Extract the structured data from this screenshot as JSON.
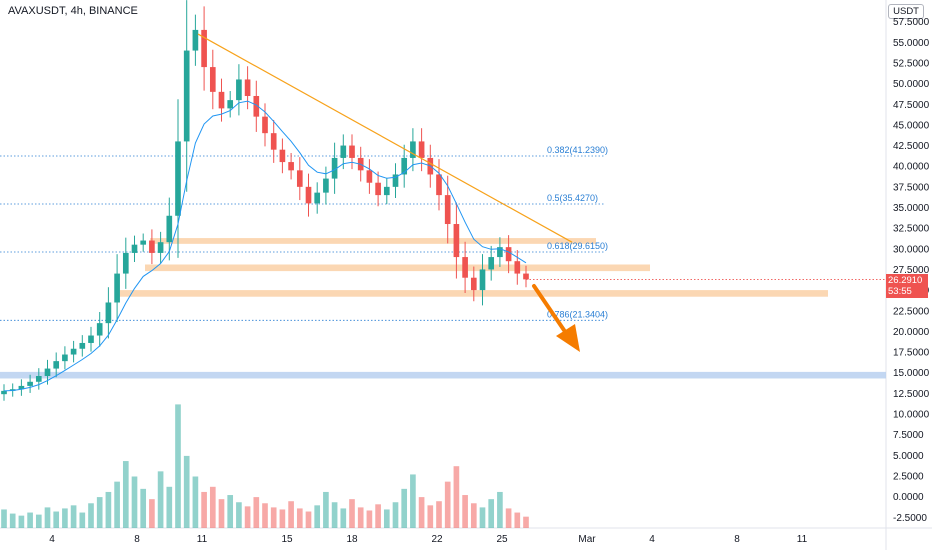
{
  "title": {
    "symbol": "AVAXUSDT",
    "interval": "4h",
    "exchange": "BINANCE"
  },
  "unit_badge": "USDT",
  "last_price": {
    "value": "26.2910",
    "countdown": "53:55"
  },
  "colors": {
    "up": "#26a69a",
    "down": "#ef5350",
    "trendline": "#f7a21b",
    "zone": "#f9c999",
    "support_zone": "#b8d0f0",
    "ma": "#2196f3",
    "arrow": "#f57c00",
    "fib": "#2a7fd4"
  },
  "chart_data": {
    "type": "candlestick",
    "symbol": "AVAXUSDT",
    "timeframe": "4h",
    "y_axis": {
      "range": [
        -3.5,
        62
      ],
      "ticks": [
        "-2.5000",
        "0.0000",
        "2.5000",
        "5.0000",
        "7.5000",
        "10.0000",
        "12.5000",
        "15.0000",
        "17.5000",
        "20.0000",
        "22.5000",
        "25.0000",
        "27.5000",
        "30.0000",
        "32.5000",
        "35.0000",
        "37.5000",
        "40.0000",
        "42.5000",
        "45.0000",
        "47.5000",
        "50.0000",
        "52.5000",
        "55.0000",
        "57.5000"
      ]
    },
    "x_axis": {
      "ticks": [
        "4",
        "8",
        "11",
        "15",
        "18",
        "22",
        "25",
        "Mar",
        "4",
        "8",
        "11"
      ]
    },
    "fib_levels": [
      {
        "label": "0.382(41.2390)",
        "value": 41.239
      },
      {
        "label": "0.5(35.4270)",
        "value": 35.427
      },
      {
        "label": "0.618(29.6150)",
        "value": 29.615
      },
      {
        "label": "0.786(21.3404)",
        "value": 21.3404
      }
    ],
    "horizontal_zones": [
      {
        "name": "resistance-zone-1",
        "low": 30.6,
        "high": 31.3
      },
      {
        "name": "resistance-zone-2",
        "low": 27.3,
        "high": 28.1
      },
      {
        "name": "support-zone-1",
        "low": 24.2,
        "high": 25.0
      },
      {
        "name": "support-zone-2",
        "low": 14.3,
        "high": 15.1
      }
    ],
    "trendline": {
      "from": 56.0,
      "to": 30.8
    },
    "price_path": [
      12.8,
      13.0,
      13.4,
      13.9,
      14.6,
      15.5,
      16.4,
      17.2,
      17.9,
      18.6,
      19.5,
      21.0,
      23.5,
      27.0,
      29.5,
      30.5,
      31.0,
      29.5,
      30.8,
      34.0,
      43.0,
      54.0,
      56.5,
      52.0,
      49.0,
      47.0,
      48.0,
      50.5,
      48.5,
      46.0,
      44.0,
      42.0,
      40.5,
      39.5,
      37.5,
      35.5,
      36.8,
      38.5,
      41.0,
      42.5,
      41.0,
      39.5,
      38.0,
      36.5,
      37.5,
      39.0,
      41.0,
      43.0,
      41.0,
      39.0,
      36.5,
      33.0,
      29.0,
      26.5,
      25.0,
      27.5,
      29.0,
      30.2,
      28.5,
      27.0,
      26.3
    ],
    "volume_path": [
      1.8,
      1.4,
      1.2,
      1.5,
      1.3,
      2.0,
      1.6,
      1.9,
      2.2,
      1.5,
      2.4,
      3.0,
      3.5,
      4.5,
      6.5,
      5.0,
      3.8,
      2.8,
      5.5,
      4.0,
      12.0,
      7.0,
      5.0,
      3.5,
      4.0,
      2.8,
      3.2,
      2.5,
      2.1,
      3.0,
      2.4,
      2.0,
      1.8,
      2.6,
      1.9,
      1.6,
      2.2,
      3.5,
      2.5,
      1.9,
      2.8,
      2.0,
      1.7,
      2.3,
      1.8,
      2.5,
      3.8,
      5.2,
      3.0,
      2.2,
      2.6,
      4.5,
      6.0,
      3.2,
      2.4,
      2.0,
      2.8,
      3.5,
      1.9,
      1.5,
      1.1
    ]
  }
}
